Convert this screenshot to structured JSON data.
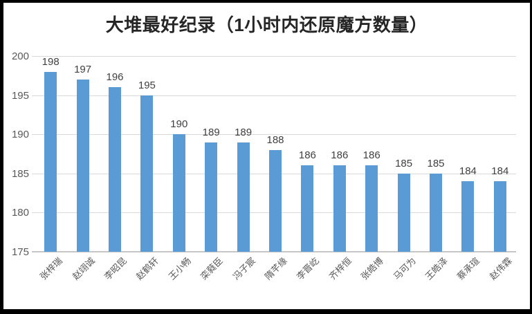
{
  "chart_data": {
    "type": "bar",
    "title": "大堆最好纪录（1小时内还原魔方数量）",
    "categories": [
      "张梓瑞",
      "赵翊诚",
      "李昭昆",
      "赵鹤轩",
      "王小畅",
      "栾蕤臣",
      "冯子宸",
      "隋芊缘",
      "李晋屹",
      "齐梓恒",
      "张皓博",
      "马可为",
      "王皓泽",
      "蔡承瑄",
      "赵伟霖"
    ],
    "values": [
      198,
      197,
      196,
      195,
      190,
      189,
      189,
      188,
      186,
      186,
      186,
      185,
      185,
      184,
      184
    ],
    "xlabel": "",
    "ylabel": "",
    "ylim": [
      175,
      200
    ],
    "yticks": [
      175,
      180,
      185,
      190,
      195,
      200
    ],
    "grid": true,
    "legend": "none",
    "data_labels_shown": true,
    "colors": {
      "bar": "#5B9BD5",
      "gridline": "#D9D9D9",
      "axis_line": "#C6C6C6",
      "tick_label": "#595959",
      "data_label": "#404040",
      "category_label": "#595959",
      "title": "#262626",
      "frame_border": "#000000",
      "background": "#FFFFFF"
    }
  }
}
